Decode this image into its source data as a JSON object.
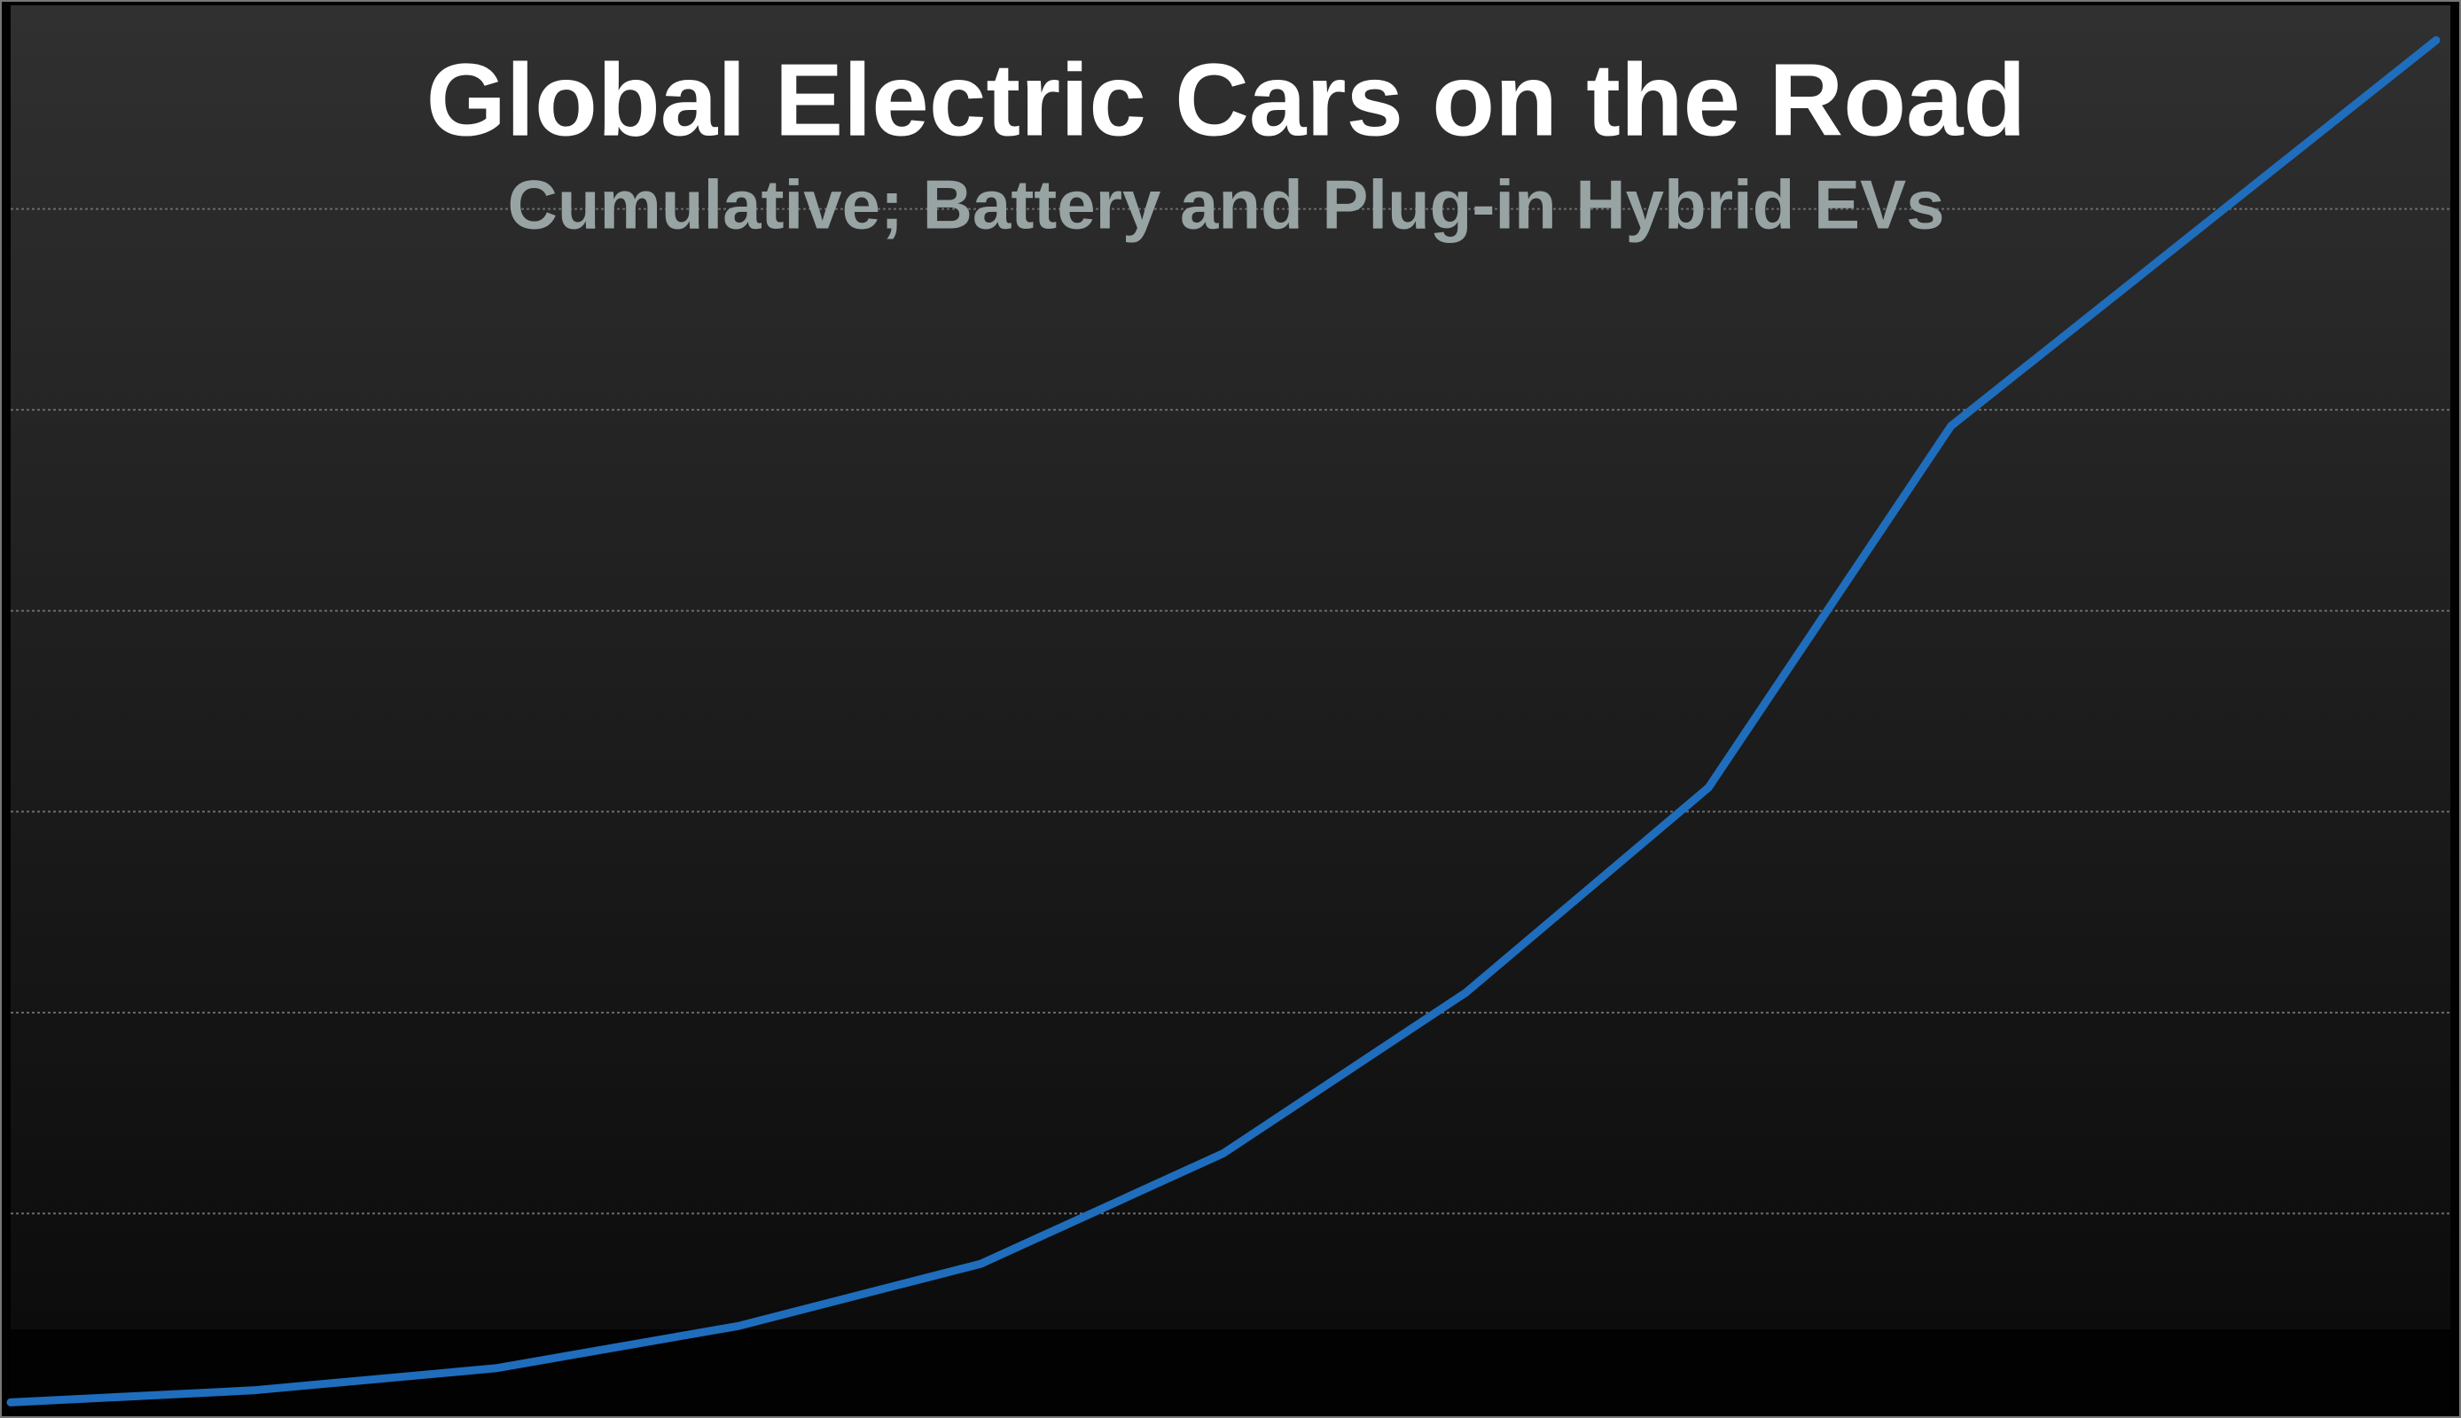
{
  "chart_data": {
    "type": "line",
    "title": "Global Electric Cars on the Road",
    "subtitle": "Cumulative; Battery and Plug-in Hybrid EVs",
    "categories": [
      null,
      null,
      null,
      null,
      null,
      null,
      null,
      null,
      null,
      null,
      null
    ],
    "series": [
      {
        "color": "#1f6dbd",
        "values": [
          0.06,
          0.12,
          0.23,
          0.44,
          0.75,
          1.3,
          2.1,
          3.12,
          4.92,
          5.88,
          6.84
        ]
      }
    ],
    "ylim": [
      0,
      7
    ],
    "yticks": [
      1,
      2,
      3,
      4,
      5,
      6
    ],
    "grid": true
  }
}
